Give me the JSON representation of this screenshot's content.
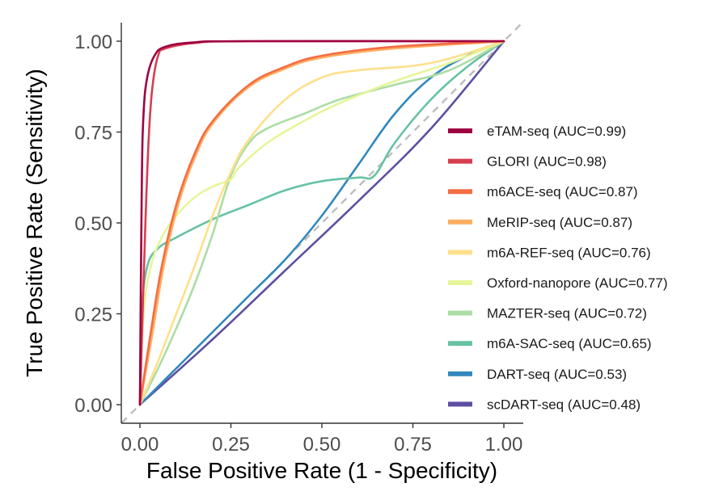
{
  "chart_data": {
    "type": "line",
    "title": "",
    "xlabel": "False Positive Rate (1 - Specificity)",
    "ylabel": "True Positive Rate (Sensitivity)",
    "xlim": [
      0,
      1
    ],
    "ylim": [
      0,
      1
    ],
    "xticks": [
      "0.00",
      "0.25",
      "0.50",
      "0.75",
      "1.00"
    ],
    "yticks": [
      "0.00",
      "0.25",
      "0.50",
      "0.75",
      "1.00"
    ],
    "grid": false,
    "legend_position": "right",
    "reference_line": {
      "name": "random",
      "style": "dashed",
      "color": "#bdbdbd"
    },
    "series": [
      {
        "name": "eTAM-seq",
        "label": "eTAM-seq (AUC=0.99)",
        "auc": 0.99,
        "color": "#9e0142",
        "points": [
          [
            0,
            0
          ],
          [
            0.005,
            0.6
          ],
          [
            0.01,
            0.8
          ],
          [
            0.02,
            0.9
          ],
          [
            0.04,
            0.96
          ],
          [
            0.07,
            0.985
          ],
          [
            0.15,
            0.997
          ],
          [
            0.3,
            1
          ],
          [
            1,
            1
          ]
        ]
      },
      {
        "name": "GLORI",
        "label": "GLORI (AUC=0.98)",
        "auc": 0.98,
        "color": "#d53e4f",
        "points": [
          [
            0,
            0
          ],
          [
            0.015,
            0.5
          ],
          [
            0.025,
            0.75
          ],
          [
            0.035,
            0.88
          ],
          [
            0.05,
            0.96
          ],
          [
            0.07,
            0.98
          ],
          [
            0.15,
            0.995
          ],
          [
            0.3,
            1
          ],
          [
            1,
            1
          ]
        ]
      },
      {
        "name": "m6ACE-seq",
        "label": "m6ACE-seq (AUC=0.87)",
        "auc": 0.87,
        "color": "#f46d43",
        "points": [
          [
            0,
            0
          ],
          [
            0.03,
            0.2
          ],
          [
            0.06,
            0.38
          ],
          [
            0.1,
            0.55
          ],
          [
            0.15,
            0.69
          ],
          [
            0.2,
            0.78
          ],
          [
            0.3,
            0.88
          ],
          [
            0.4,
            0.93
          ],
          [
            0.5,
            0.96
          ],
          [
            0.7,
            0.985
          ],
          [
            1,
            1
          ]
        ]
      },
      {
        "name": "MeRIP-seq",
        "label": "MeRIP-seq (AUC=0.87)",
        "auc": 0.87,
        "color": "#fdae61",
        "points": [
          [
            0,
            0
          ],
          [
            0.035,
            0.2
          ],
          [
            0.065,
            0.38
          ],
          [
            0.105,
            0.55
          ],
          [
            0.155,
            0.69
          ],
          [
            0.205,
            0.78
          ],
          [
            0.3,
            0.875
          ],
          [
            0.4,
            0.925
          ],
          [
            0.5,
            0.955
          ],
          [
            0.7,
            0.98
          ],
          [
            1,
            1
          ]
        ]
      },
      {
        "name": "m6A-REF-seq",
        "label": "m6A-REF-seq (AUC=0.76)",
        "auc": 0.76,
        "color": "#fee08b",
        "points": [
          [
            0,
            0
          ],
          [
            0.05,
            0.12
          ],
          [
            0.1,
            0.25
          ],
          [
            0.15,
            0.38
          ],
          [
            0.2,
            0.52
          ],
          [
            0.25,
            0.64
          ],
          [
            0.3,
            0.73
          ],
          [
            0.4,
            0.84
          ],
          [
            0.5,
            0.9
          ],
          [
            0.6,
            0.92
          ],
          [
            0.8,
            0.94
          ],
          [
            1,
            1
          ]
        ]
      },
      {
        "name": "Oxford-nanopore",
        "label": "Oxford-nanopore (AUC=0.77)",
        "auc": 0.77,
        "color": "#e6f598",
        "points": [
          [
            0,
            0
          ],
          [
            0.01,
            0.25
          ],
          [
            0.03,
            0.38
          ],
          [
            0.06,
            0.46
          ],
          [
            0.1,
            0.52
          ],
          [
            0.15,
            0.57
          ],
          [
            0.2,
            0.6
          ],
          [
            0.25,
            0.62
          ],
          [
            0.27,
            0.65
          ],
          [
            0.35,
            0.72
          ],
          [
            0.45,
            0.78
          ],
          [
            0.55,
            0.83
          ],
          [
            0.7,
            0.89
          ],
          [
            0.85,
            0.94
          ],
          [
            1,
            1
          ]
        ]
      },
      {
        "name": "MAZTER-seq",
        "label": "MAZTER-seq (AUC=0.72)",
        "auc": 0.72,
        "color": "#abdda4",
        "points": [
          [
            0,
            0
          ],
          [
            0.05,
            0.1
          ],
          [
            0.1,
            0.21
          ],
          [
            0.15,
            0.33
          ],
          [
            0.2,
            0.47
          ],
          [
            0.25,
            0.63
          ],
          [
            0.3,
            0.72
          ],
          [
            0.35,
            0.76
          ],
          [
            0.45,
            0.8
          ],
          [
            0.55,
            0.84
          ],
          [
            0.7,
            0.88
          ],
          [
            0.85,
            0.92
          ],
          [
            1,
            1
          ]
        ]
      },
      {
        "name": "m6A-SAC-seq",
        "label": "m6A-SAC-seq (AUC=0.65)",
        "auc": 0.65,
        "color": "#66c2a5",
        "points": [
          [
            0,
            0
          ],
          [
            0.005,
            0.25
          ],
          [
            0.02,
            0.38
          ],
          [
            0.05,
            0.43
          ],
          [
            0.1,
            0.46
          ],
          [
            0.2,
            0.51
          ],
          [
            0.3,
            0.55
          ],
          [
            0.4,
            0.59
          ],
          [
            0.5,
            0.615
          ],
          [
            0.6,
            0.625
          ],
          [
            0.644,
            0.63
          ],
          [
            0.7,
            0.72
          ],
          [
            0.8,
            0.84
          ],
          [
            0.9,
            0.93
          ],
          [
            1,
            1
          ]
        ]
      },
      {
        "name": "DART-seq",
        "label": "DART-seq (AUC=0.53)",
        "auc": 0.53,
        "color": "#3288bd",
        "points": [
          [
            0,
            0
          ],
          [
            0.1,
            0.1
          ],
          [
            0.2,
            0.2
          ],
          [
            0.3,
            0.3
          ],
          [
            0.4,
            0.4
          ],
          [
            0.5,
            0.52
          ],
          [
            0.6,
            0.66
          ],
          [
            0.7,
            0.8
          ],
          [
            0.8,
            0.9
          ],
          [
            0.9,
            0.96
          ],
          [
            1,
            1
          ]
        ]
      },
      {
        "name": "scDART-seq",
        "label": "scDART-seq (AUC=0.48)",
        "auc": 0.48,
        "color": "#5e4fa2",
        "points": [
          [
            0,
            0
          ],
          [
            0.2,
            0.18
          ],
          [
            0.4,
            0.37
          ],
          [
            0.6,
            0.56
          ],
          [
            0.8,
            0.76
          ],
          [
            1,
            1
          ]
        ]
      }
    ]
  }
}
